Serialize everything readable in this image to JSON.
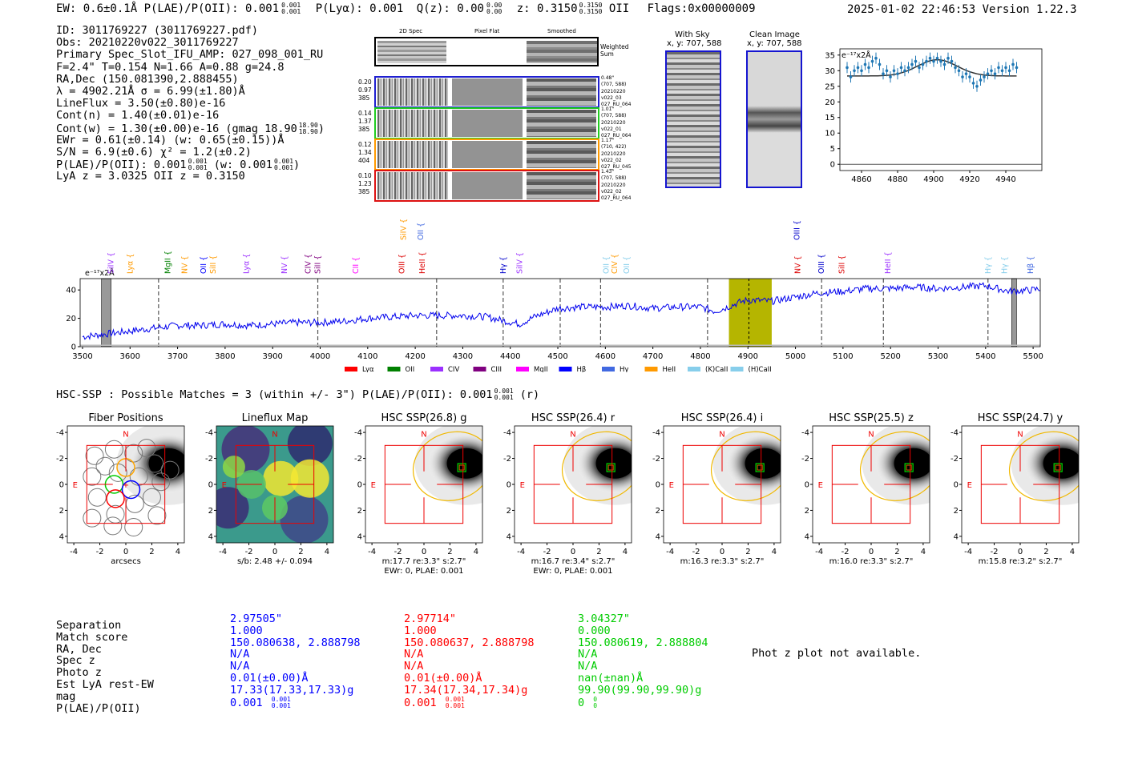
{
  "header": {
    "left": "EW: 0.6±0.1Å  P(LAE)/P(OII): 0.001",
    "pl_sup": "0.001",
    "pl_sub": "0.001",
    "plya": "P(Lyα): 0.001",
    "qz": "Q(z): 0.00",
    "qz_sup": "0.00",
    "qz_sub": "0.00",
    "z": "z: 0.3150",
    "z_sup": "0.3150",
    "z_sub": "0.3150",
    "z_line": "OII",
    "flags": "Flags:0x00000009",
    "right": "2025-01-02 22:46:53  Version 1.22.3"
  },
  "info": {
    "lines": [
      "ID: 3011769227 (3011769227.pdf)",
      "Obs: 20210220v022_3011769227",
      "Primary Spec_Slot_IFU_AMP: 027_098_001_RU",
      "F=2.4\"  T=0.154  N=1.66  A=0.88  g=24.8",
      "RA,Dec (150.081390,2.888455)",
      "λ = 4902.21Å  σ = 6.99(±1.80)Å",
      "LineFlux = 3.50(±0.80)e-16",
      "Cont(n) = 1.40(±0.01)e-16",
      "Cont(w) = 1.30(±0.00)e-16 (gmag 18.90",
      "EWr = 0.61(±0.14) (w: 0.65(±0.15))Å",
      "S/N = 6.9(±0.6)  χ² = 1.2(±0.2)",
      "P(LAE)/P(OII): 0.001",
      "LyA z = 3.0325  OII z = 0.3150"
    ],
    "gmag_sup": "18.90",
    "gmag_sub": "18.90",
    "pl_sup": "0.001",
    "pl_sub": "0.001",
    "pl_w": "(w: 0.001",
    "pl_w_sup": "0.001",
    "pl_w_sub": "0.001"
  },
  "cutouts": {
    "headers": [
      "2D Spec",
      "Pixel Flat",
      "Smoothed"
    ],
    "weighted": "Weighted Sum",
    "rows": [
      {
        "left": [
          "0.20",
          "0.97",
          "385"
        ],
        "right": [
          "0.48\"",
          "(707, 588)",
          "20210220",
          "v022_03",
          "027_RU_064"
        ],
        "color": "#1f1fd0"
      },
      {
        "left": [
          "0.14",
          "1.37",
          "385"
        ],
        "right": [
          "1.01\"",
          "(707, 588)",
          "20210220",
          "v022_01",
          "027_RU_064"
        ],
        "color": "#22cc22"
      },
      {
        "left": [
          "0.12",
          "1.34",
          "404"
        ],
        "right": [
          "1.17\"",
          "(710, 422)",
          "20210220",
          "v022_02",
          "027_RU_045"
        ],
        "color": "#ff9a00"
      },
      {
        "left": [
          "0.10",
          "1.23",
          "385"
        ],
        "right": [
          "1.43\"",
          "(707, 588)",
          "20210220",
          "v022_02",
          "027_RU_064"
        ],
        "color": "#dd1111"
      }
    ]
  },
  "sky": {
    "with_sky_title": "With Sky",
    "with_sky_sub": "x, y: 707, 588",
    "clean_title": "Clean Image",
    "clean_sub": "x, y: 707, 588"
  },
  "colors": {
    "blue": "#0000ff",
    "red": "#ff0000",
    "green": "#00cc00",
    "olive": "#b5b500",
    "orange": "#ffa500",
    "spec_blue": "#1f77b4"
  },
  "chart_data": [
    {
      "type": "scatter",
      "title": "",
      "ylabel": "e⁻¹⁷x2Å",
      "xlim": [
        4848,
        4960
      ],
      "ylim": [
        -2,
        37
      ],
      "xticks": [
        4860,
        4880,
        4900,
        4920,
        4940
      ],
      "yticks": [
        0,
        5,
        10,
        15,
        20,
        25,
        30,
        35
      ],
      "x": [
        4852,
        4854,
        4856,
        4858,
        4860,
        4862,
        4864,
        4866,
        4868,
        4870,
        4872,
        4874,
        4876,
        4878,
        4880,
        4882,
        4884,
        4886,
        4888,
        4890,
        4892,
        4894,
        4896,
        4898,
        4900,
        4902,
        4904,
        4906,
        4908,
        4910,
        4912,
        4914,
        4916,
        4918,
        4920,
        4922,
        4924,
        4926,
        4928,
        4930,
        4932,
        4934,
        4936,
        4938,
        4940,
        4942,
        4944,
        4946
      ],
      "y": [
        31,
        28,
        30,
        31,
        30,
        32,
        31,
        33,
        34,
        32,
        29,
        30,
        28,
        30,
        29,
        31,
        30,
        31,
        32,
        33,
        31,
        32,
        33,
        34,
        33,
        34,
        33,
        32,
        34,
        33,
        31,
        30,
        28,
        29,
        28,
        26,
        25,
        27,
        28,
        29,
        30,
        29,
        31,
        30,
        31,
        30,
        32,
        31
      ],
      "fit": "gaussian continuum ~28.3, peak ~33.5 at 4902",
      "zero_line": 0
    },
    {
      "type": "line",
      "title": "",
      "ylabel": "e⁻¹⁷x2Å",
      "xlim": [
        3495,
        5515
      ],
      "ylim": [
        0,
        48
      ],
      "xticks": [
        3500,
        3600,
        3700,
        3800,
        3900,
        4000,
        4100,
        4200,
        4300,
        4400,
        4500,
        4600,
        4700,
        4800,
        4900,
        5000,
        5100,
        5200,
        5300,
        5400,
        5500
      ],
      "yticks": [
        0,
        20,
        40
      ],
      "highlight_band": [
        4860,
        4950
      ],
      "center_line": 4902,
      "grey_bands": [
        [
          3540,
          3560
        ],
        [
          5455,
          5465
        ]
      ],
      "dashed_lines": [
        3660,
        3995,
        4245,
        4385,
        4505,
        4590,
        4815,
        5055,
        5185,
        5405
      ],
      "line_labels": [
        {
          "name": "SiIV",
          "x": 3560,
          "color": "#9b30ff"
        },
        {
          "name": "Lyα",
          "x": 3600,
          "color": "#ff9a00"
        },
        {
          "name": "MgII",
          "x": 3680,
          "color": "#008000"
        },
        {
          "name": "NV",
          "x": 3715,
          "color": "#ff9a00"
        },
        {
          "name": "OII",
          "x": 3755,
          "color": "#0000ff"
        },
        {
          "name": "SiII",
          "x": 3775,
          "color": "#ff9a00"
        },
        {
          "name": "Lyα",
          "x": 3845,
          "color": "#9b30ff"
        },
        {
          "name": "NV",
          "x": 3925,
          "color": "#9b30ff"
        },
        {
          "name": "CIV",
          "x": 3975,
          "color": "#800080"
        },
        {
          "name": "SiII",
          "x": 3995,
          "color": "#800080"
        },
        {
          "name": "CII",
          "x": 4075,
          "color": "#ff00ff"
        },
        {
          "name": "SiIV",
          "x": 4175,
          "color": "#ff9a00"
        },
        {
          "name": "OIII",
          "x": 4172,
          "color": "#dd0000"
        },
        {
          "name": "OII",
          "x": 4212,
          "color": "#4169e1"
        },
        {
          "name": "HeII",
          "x": 4215,
          "color": "#dd0000"
        },
        {
          "name": "Hγ",
          "x": 4385,
          "color": "#0000cc"
        },
        {
          "name": "SiIV",
          "x": 4420,
          "color": "#9b30ff"
        },
        {
          "name": "OII",
          "x": 4602,
          "color": "#87ceeb"
        },
        {
          "name": "CIV",
          "x": 4620,
          "color": "#ff9a00"
        },
        {
          "name": "OII",
          "x": 4645,
          "color": "#87ceeb"
        },
        {
          "name": "OIII",
          "x": 5003,
          "color": "#0000cc"
        },
        {
          "name": "NV",
          "x": 5005,
          "color": "#dd0000"
        },
        {
          "name": "OIII",
          "x": 5055,
          "color": "#0000cc"
        },
        {
          "name": "SiII",
          "x": 5098,
          "color": "#dd0000"
        },
        {
          "name": "HeII",
          "x": 5195,
          "color": "#9b30ff"
        },
        {
          "name": "Hγ",
          "x": 5405,
          "color": "#87ceeb"
        },
        {
          "name": "Hγ",
          "x": 5440,
          "color": "#87ceeb"
        },
        {
          "name": "Hβ",
          "x": 5495,
          "color": "#4169e1"
        }
      ],
      "legend": [
        {
          "name": "Lyα",
          "color": "#ff0000"
        },
        {
          "name": "OII",
          "color": "#008000"
        },
        {
          "name": "CIV",
          "color": "#9b30ff"
        },
        {
          "name": "CIII",
          "color": "#800080"
        },
        {
          "name": "MgII",
          "color": "#ff00ff"
        },
        {
          "name": "Hβ",
          "color": "#0000ff"
        },
        {
          "name": "Hγ",
          "color": "#4169e1"
        },
        {
          "name": "HeII",
          "color": "#ff9a00"
        },
        {
          "name": "(K)CaII",
          "color": "#87ceeb"
        },
        {
          "name": "(H)CaII",
          "color": "#87ceeb"
        }
      ],
      "x": [
        3500,
        3550,
        3600,
        3650,
        3700,
        3750,
        3800,
        3850,
        3900,
        3950,
        4000,
        4050,
        4100,
        4150,
        4200,
        4250,
        4300,
        4350,
        4390,
        4420,
        4450,
        4500,
        4550,
        4600,
        4650,
        4700,
        4750,
        4800,
        4830,
        4850,
        4880,
        4900,
        4950,
        5000,
        5050,
        5100,
        5150,
        5200,
        5250,
        5300,
        5350,
        5400,
        5450,
        5500,
        5515
      ],
      "y": [
        7,
        9,
        11,
        13,
        15,
        15,
        16,
        15,
        16,
        17,
        17,
        18,
        20,
        21,
        22,
        22,
        22,
        21,
        18,
        16,
        21,
        27,
        28,
        28,
        29,
        27,
        28,
        28,
        25,
        27,
        31,
        33,
        32,
        35,
        38,
        39,
        41,
        41,
        42,
        41,
        42,
        43,
        39,
        40,
        41
      ]
    }
  ],
  "hsc": {
    "title": "HSC-SSP : Possible Matches = 3 (within +/- 3\")  P(LAE)/P(OII): 0.001",
    "title_sup": "0.001",
    "title_sub": "0.001",
    "title_tail": "(r)",
    "panels": [
      {
        "title": "Fiber Positions",
        "caption1": "arcsecs",
        "caption2": ""
      },
      {
        "title": "Lineflux Map",
        "caption1": "s/b: 2.48 +/- 0.094",
        "caption2": ""
      },
      {
        "title": "HSC SSP(26.8) g",
        "caption1": "m:17.7  re:3.3\"  s:2.7\"",
        "caption2": "EWr: 0, PLAE: 0.001"
      },
      {
        "title": "HSC SSP(26.4) r",
        "caption1": "m:16.7  re:3.4\"  s:2.7\"",
        "caption2": "EWr: 0, PLAE: 0.001"
      },
      {
        "title": "HSC SSP(26.4) i",
        "caption1": "m:16.3  re:3.3\"  s:2.7\"",
        "caption2": ""
      },
      {
        "title": "HSC SSP(25.5) z",
        "caption1": "m:16.0  re:3.3\"  s:2.7\"",
        "caption2": ""
      },
      {
        "title": "HSC SSP(24.7) y",
        "caption1": "m:15.8  re:3.2\"  s:2.7\"",
        "caption2": ""
      }
    ],
    "axis_ticks": [
      "-4",
      "-2",
      "0",
      "2",
      "4"
    ],
    "n_label": "N",
    "e_label": "E"
  },
  "matches": {
    "labels": [
      "Separation",
      "Match score",
      "RA, Dec",
      "Spec z",
      "Photo z",
      "Est LyA rest-EW",
      "mag",
      "P(LAE)/P(OII)"
    ],
    "columns": [
      {
        "color": "#0000ff",
        "values": [
          "2.97505\"",
          "1.000",
          "150.080638, 2.888798",
          "N/A",
          "N/A",
          "0.01(±0.00)Å",
          "17.33(17.33,17.33)g",
          "0.001"
        ],
        "sup": "0.001",
        "sub": "0.001"
      },
      {
        "color": "#ff0000",
        "values": [
          "2.97714\"",
          "1.000",
          "150.080637, 2.888798",
          "N/A",
          "N/A",
          "0.01(±0.00)Å",
          "17.34(17.34,17.34)g",
          "0.001"
        ],
        "sup": "0.001",
        "sub": "0.001"
      },
      {
        "color": "#00cc00",
        "values": [
          "3.04327\"",
          "0.000",
          "150.080619, 2.888804",
          "N/A",
          "N/A",
          "nan(±nan)Å",
          "99.90(99.90,99.90)g",
          "0"
        ],
        "sup": "0",
        "sub": "0"
      }
    ],
    "photz_note": "Phot z plot not available."
  }
}
